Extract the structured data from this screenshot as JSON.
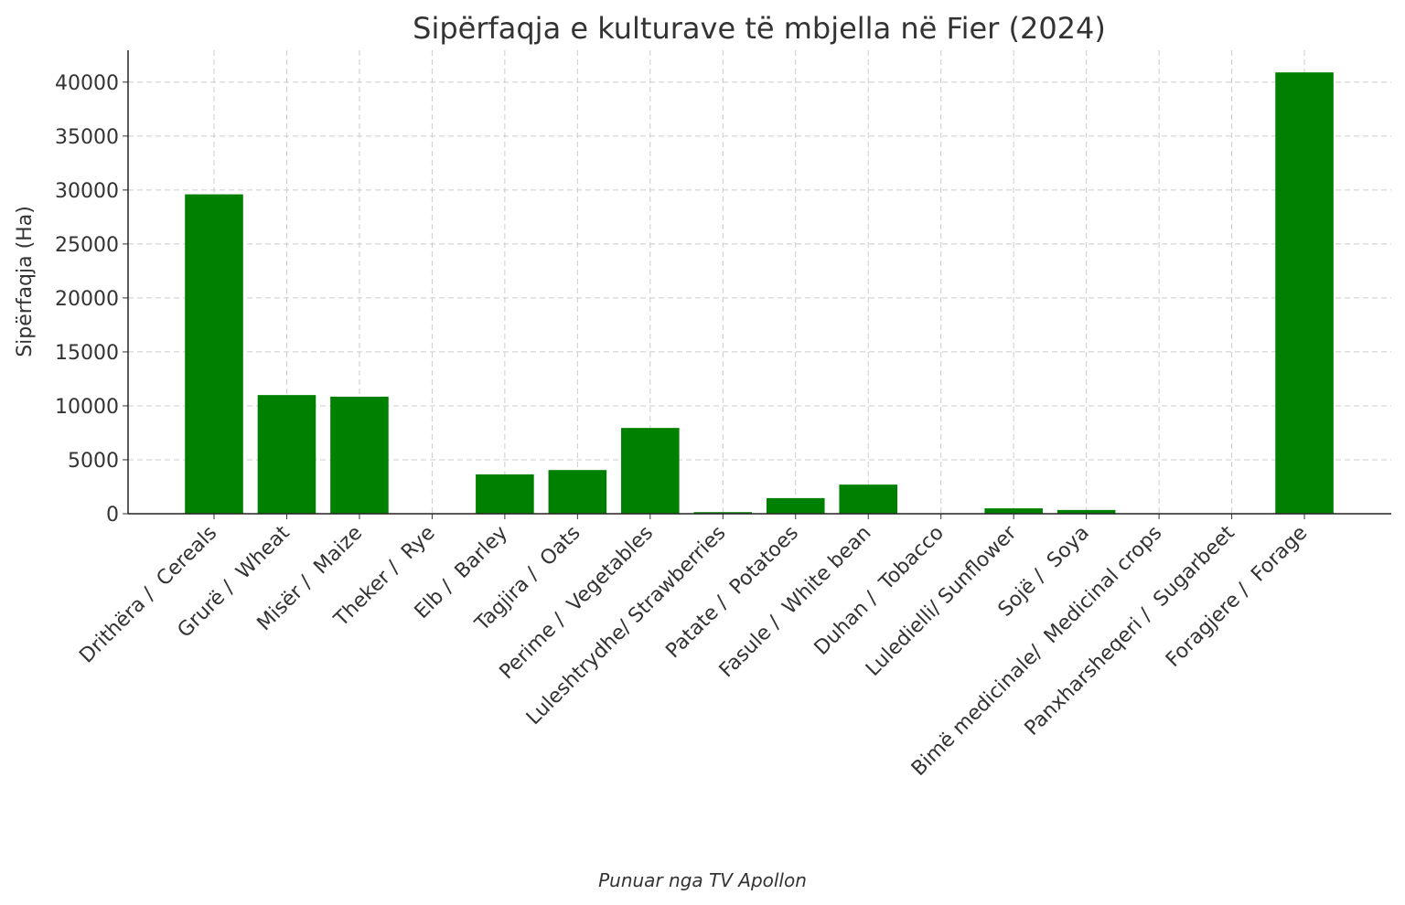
{
  "chart_data": {
    "type": "bar",
    "title": "Sipërfaqja e kulturave të mbjella në Fier (2024)",
    "y_label": "Sipërfaqja (Ha)",
    "footer": "Punuar nga TV Apollon",
    "categories": [
      "Drithëra /  Cereals",
      "Grurë /  Wheat",
      "Misër /  Maize",
      "Theker /  Rye",
      "Elb /  Barley",
      "Tagjira /  Oats",
      "Perime /  Vegetables",
      "Luleshtrydhe/ Strawberries",
      "Patate /  Potatoes",
      "Fasule /  White bean",
      "Duhan /  Tobacco",
      "Luledielli/ Sunflower",
      "Sojë /  Soya",
      "Bimë medicinale/  Medicinal crops",
      "Panxharsheqeri /  Sugarbeet",
      "Foragjere /  Forage"
    ],
    "values": [
      29600,
      11000,
      10850,
      0,
      3650,
      4050,
      7950,
      150,
      1450,
      2700,
      0,
      500,
      350,
      0,
      0,
      40900
    ],
    "color": "#008000",
    "ylim": [
      0,
      42950
    ],
    "yticks": [
      0,
      5000,
      10000,
      15000,
      20000,
      25000,
      30000,
      35000,
      40000
    ],
    "grid": true
  }
}
